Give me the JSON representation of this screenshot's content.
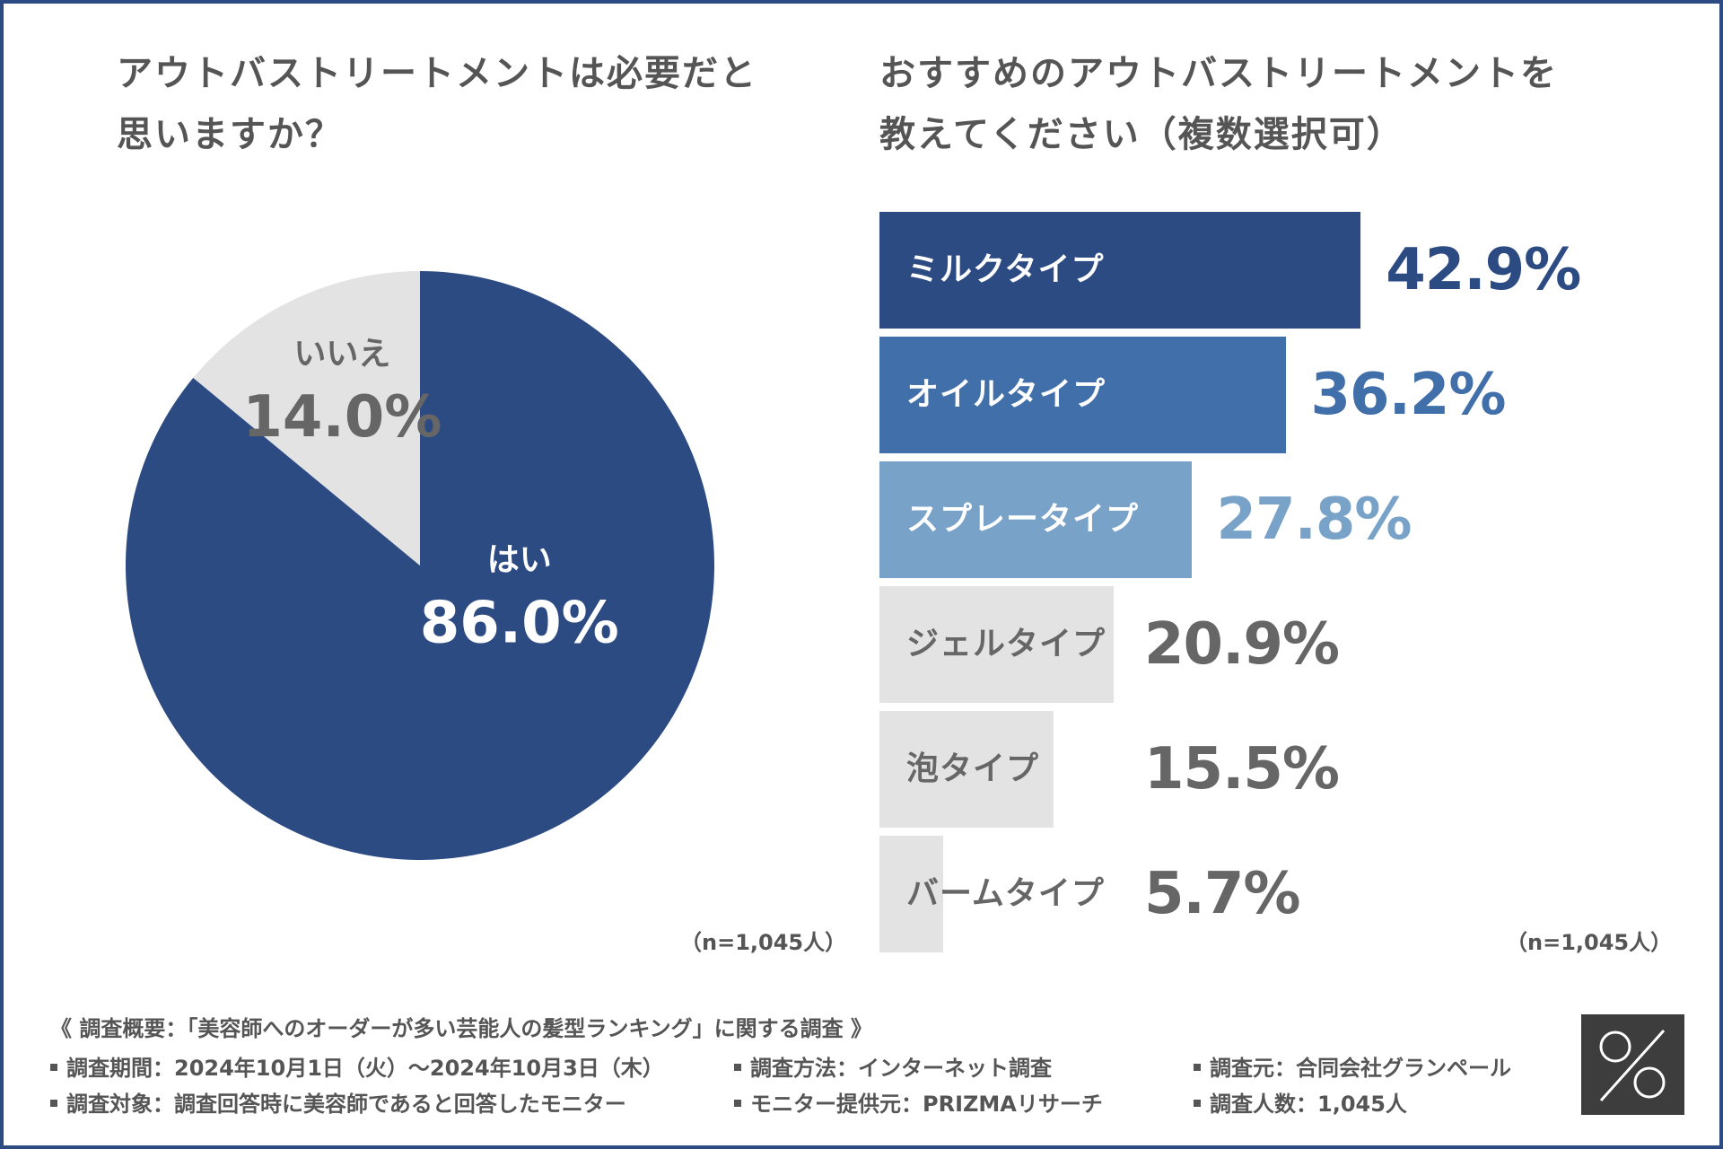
{
  "left_chart": {
    "title_line1": "アウトバストリートメントは必要だと",
    "title_line2": "思いますか？",
    "n_note": "（n=1,045人）"
  },
  "right_chart": {
    "title_line1": "おすすめのアウトバストリートメントを",
    "title_line2": "教えてください（複数選択可）",
    "n_note": "（n=1,045人）"
  },
  "chart_data": [
    {
      "type": "pie",
      "title": "アウトバストリートメントは必要だと思いますか？",
      "slices": [
        {
          "label": "はい",
          "value": 86.0,
          "value_text": "86.0%",
          "color": "#2d4b83",
          "text_color": "#ffffff"
        },
        {
          "label": "いいえ",
          "value": 14.0,
          "value_text": "14.0%",
          "color": "#e3e3e3",
          "text_color": "#666666"
        }
      ]
    },
    {
      "type": "bar",
      "orientation": "horizontal",
      "title": "おすすめのアウトバストリートメントを教えてください（複数選択可）",
      "xlim": [
        0,
        50
      ],
      "categories": [
        "ミルクタイプ",
        "オイルタイプ",
        "スプレータイプ",
        "ジェルタイプ",
        "泡タイプ",
        "バームタイプ"
      ],
      "values": [
        42.9,
        36.2,
        27.8,
        20.9,
        15.5,
        5.7
      ],
      "value_texts": [
        "42.9%",
        "36.2%",
        "27.8%",
        "20.9%",
        "15.5%",
        "5.7%"
      ],
      "bar_colors": [
        "#2d4b83",
        "#416faa",
        "#78a2c7",
        "#e3e3e3",
        "#e3e3e3",
        "#e3e3e3"
      ],
      "label_colors": [
        "#ffffff",
        "#ffffff",
        "#ffffff",
        "#666666",
        "#666666",
        "#666666"
      ],
      "value_colors": [
        "#2d4b83",
        "#416faa",
        "#78a2c7",
        "#666666",
        "#666666",
        "#666666"
      ]
    }
  ],
  "footer": {
    "heading": "《 調査概要：「美容師へのオーダーが多い芸能人の髪型ランキング」に関する調査 》",
    "period": "調査期間：2024年10月1日（火）〜2024年10月3日（木）",
    "method": "調査方法：インターネット調査",
    "source": "調査元：合同会社グランペール",
    "target": "調査対象：調査回答時に美容師であると回答したモニター",
    "provider": "モニター提供元：PRIZMAリサーチ",
    "count": "調査人数：1,045人"
  },
  "colors": {
    "border": "#2d4b83",
    "text": "#555555",
    "logo_bg": "#3d3d3d"
  }
}
